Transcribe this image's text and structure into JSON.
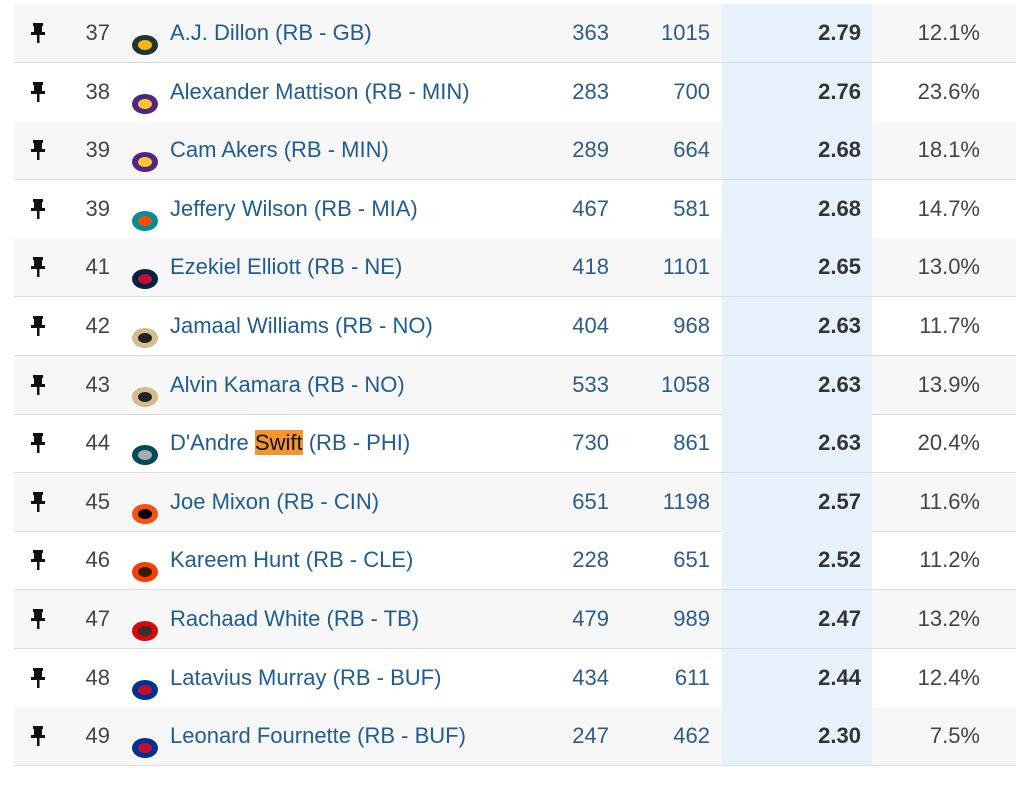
{
  "table": {
    "rows": [
      {
        "rank": "37",
        "name": "A.J. Dillon",
        "tag": "(RB - GB)",
        "c1": "363",
        "c2": "1015",
        "c3": "2.79",
        "c4": "12.1%"
      },
      {
        "rank": "38",
        "name": "Alexander Mattison",
        "tag": "(RB - MIN)",
        "c1": "283",
        "c2": "700",
        "c3": "2.76",
        "c4": "23.6%"
      },
      {
        "rank": "39",
        "name": "Cam Akers",
        "tag": "(RB - MIN)",
        "c1": "289",
        "c2": "664",
        "c3": "2.68",
        "c4": "18.1%"
      },
      {
        "rank": "39",
        "name": "Jeffery Wilson",
        "tag": "(RB - MIA)",
        "c1": "467",
        "c2": "581",
        "c3": "2.68",
        "c4": "14.7%"
      },
      {
        "rank": "41",
        "name": "Ezekiel Elliott",
        "tag": "(RB - NE)",
        "c1": "418",
        "c2": "1101",
        "c3": "2.65",
        "c4": "13.0%"
      },
      {
        "rank": "42",
        "name": "Jamaal Williams",
        "tag": "(RB - NO)",
        "c1": "404",
        "c2": "968",
        "c3": "2.63",
        "c4": "11.7%"
      },
      {
        "rank": "43",
        "name": "Alvin Kamara",
        "tag": "(RB - NO)",
        "c1": "533",
        "c2": "1058",
        "c3": "2.63",
        "c4": "13.9%"
      },
      {
        "rank": "44",
        "name": "D'Andre",
        "highlight": "Swift",
        "tag": "(RB - PHI)",
        "c1": "730",
        "c2": "861",
        "c3": "2.63",
        "c4": "20.4%"
      },
      {
        "rank": "45",
        "name": "Joe Mixon",
        "tag": "(RB - CIN)",
        "c1": "651",
        "c2": "1198",
        "c3": "2.57",
        "c4": "11.6%"
      },
      {
        "rank": "46",
        "name": "Kareem Hunt",
        "tag": "(RB - CLE)",
        "c1": "228",
        "c2": "651",
        "c3": "2.52",
        "c4": "11.2%"
      },
      {
        "rank": "47",
        "name": "Rachaad White",
        "tag": "(RB - TB)",
        "c1": "479",
        "c2": "989",
        "c3": "2.47",
        "c4": "13.2%"
      },
      {
        "rank": "48",
        "name": "Latavius Murray",
        "tag": "(RB - BUF)",
        "c1": "434",
        "c2": "611",
        "c3": "2.44",
        "c4": "12.4%"
      },
      {
        "rank": "49",
        "name": "Leonard Fournette",
        "tag": "(RB - BUF)",
        "c1": "247",
        "c2": "462",
        "c3": "2.30",
        "c4": "7.5%"
      }
    ]
  }
}
